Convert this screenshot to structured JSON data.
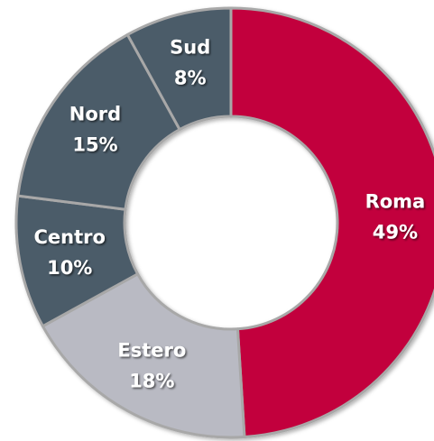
{
  "chart_data": {
    "type": "donut",
    "categories": [
      "Roma",
      "Estero",
      "Centro",
      "Nord",
      "Sud"
    ],
    "values": [
      49,
      18,
      10,
      15,
      8
    ],
    "value_labels": [
      "49%",
      "18%",
      "10%",
      "15%",
      "8%"
    ],
    "colors": [
      "#c2053c",
      "#b9bac3",
      "#4c5b69",
      "#4c5b69",
      "#4c5b69"
    ]
  }
}
